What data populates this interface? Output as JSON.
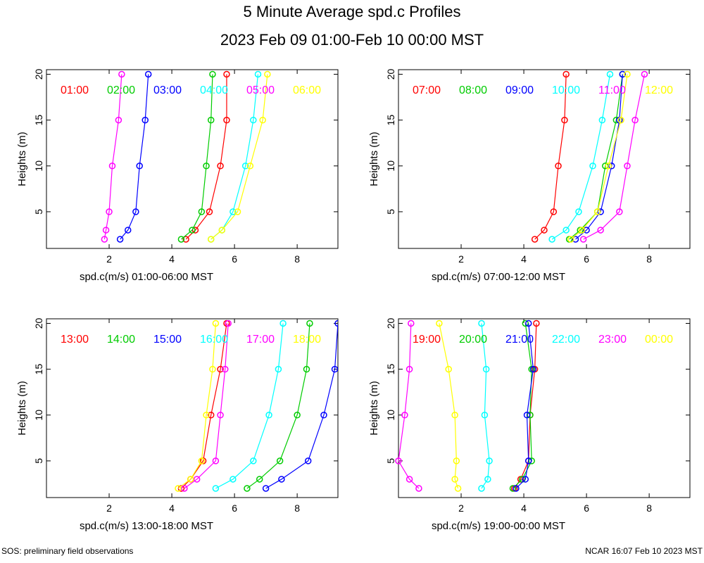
{
  "title": "5 Minute Average spd.c Profiles",
  "subtitle": "2023 Feb 09 01:00-Feb 10 00:00 MST",
  "footer_left": "SOS: preliminary field observations",
  "footer_right": "NCAR 16:07 Feb 10 2023 MST",
  "chart_data": [
    {
      "type": "line",
      "ylabel": "Heights (m)",
      "xlabel": "spd.c(m/s) 01:00-06:00 MST",
      "xlim": [
        0,
        9.3
      ],
      "ylim": [
        1,
        20.5
      ],
      "xticks": [
        2,
        4,
        6,
        8
      ],
      "yticks": [
        5,
        10,
        15,
        20
      ],
      "heights": [
        2,
        3,
        5,
        10,
        15,
        20
      ],
      "series": [
        {
          "name": "01:00",
          "color": "#ff0000",
          "x": [
            4.45,
            4.75,
            5.2,
            5.55,
            5.75,
            5.75
          ]
        },
        {
          "name": "02:00",
          "color": "#00cc00",
          "x": [
            4.3,
            4.65,
            4.95,
            5.1,
            5.25,
            5.3
          ]
        },
        {
          "name": "03:00",
          "color": "#0000ff",
          "x": [
            2.35,
            2.6,
            2.85,
            2.97,
            3.15,
            3.25
          ]
        },
        {
          "name": "04:00",
          "color": "#00ffff",
          "x": [
            5.25,
            5.6,
            5.95,
            6.35,
            6.6,
            6.75
          ]
        },
        {
          "name": "05:00",
          "color": "#ff00ff",
          "x": [
            1.85,
            1.9,
            2.0,
            2.1,
            2.3,
            2.4
          ]
        },
        {
          "name": "06:00",
          "color": "#ffff00",
          "x": [
            5.25,
            5.6,
            6.1,
            6.5,
            6.9,
            7.05
          ]
        }
      ]
    },
    {
      "type": "line",
      "ylabel": "Heights (m)",
      "xlabel": "spd.c(m/s) 07:00-12:00 MST",
      "xlim": [
        0,
        9.3
      ],
      "ylim": [
        1,
        20.5
      ],
      "xticks": [
        2,
        4,
        6,
        8
      ],
      "yticks": [
        5,
        10,
        15,
        20
      ],
      "heights": [
        2,
        3,
        5,
        10,
        15,
        20
      ],
      "series": [
        {
          "name": "07:00",
          "color": "#ff0000",
          "x": [
            4.35,
            4.65,
            4.95,
            5.1,
            5.3,
            5.35
          ]
        },
        {
          "name": "08:00",
          "color": "#00cc00",
          "x": [
            5.45,
            5.8,
            6.35,
            6.6,
            6.95,
            7.15
          ]
        },
        {
          "name": "09:00",
          "color": "#0000ff",
          "x": [
            5.65,
            6.0,
            6.45,
            6.8,
            7.05,
            7.15
          ]
        },
        {
          "name": "10:00",
          "color": "#00ffff",
          "x": [
            4.9,
            5.35,
            5.75,
            6.2,
            6.5,
            6.75
          ]
        },
        {
          "name": "11:00",
          "color": "#ff00ff",
          "x": [
            5.9,
            6.45,
            7.05,
            7.3,
            7.55,
            7.85
          ]
        },
        {
          "name": "12:00",
          "color": "#ffff00",
          "x": [
            5.5,
            5.85,
            6.35,
            6.7,
            7.1,
            7.3
          ]
        }
      ]
    },
    {
      "type": "line",
      "ylabel": "Heights (m)",
      "xlabel": "spd.c(m/s) 13:00-18:00 MST",
      "xlim": [
        0,
        9.3
      ],
      "ylim": [
        1,
        20.5
      ],
      "xticks": [
        2,
        4,
        6,
        8
      ],
      "yticks": [
        5,
        10,
        15,
        20
      ],
      "heights": [
        2,
        3,
        5,
        10,
        15,
        20
      ],
      "series": [
        {
          "name": "13:00",
          "color": "#ff0000",
          "x": [
            4.3,
            4.6,
            5.0,
            5.25,
            5.55,
            5.75
          ]
        },
        {
          "name": "14:00",
          "color": "#00cc00",
          "x": [
            6.4,
            6.8,
            7.45,
            8.0,
            8.3,
            8.4
          ]
        },
        {
          "name": "15:00",
          "color": "#0000ff",
          "x": [
            7.0,
            7.5,
            8.35,
            8.85,
            9.2,
            9.3
          ]
        },
        {
          "name": "16:00",
          "color": "#00ffff",
          "x": [
            5.4,
            5.95,
            6.6,
            7.1,
            7.4,
            7.55
          ]
        },
        {
          "name": "17:00",
          "color": "#ff00ff",
          "x": [
            4.4,
            4.8,
            5.4,
            5.55,
            5.7,
            5.8
          ]
        },
        {
          "name": "18:00",
          "color": "#ffff00",
          "x": [
            4.2,
            4.6,
            4.95,
            5.1,
            5.3,
            5.4
          ]
        }
      ]
    },
    {
      "type": "line",
      "ylabel": "Heights (m)",
      "xlabel": "spd.c(m/s) 19:00-00:00 MST",
      "xlim": [
        0,
        9.3
      ],
      "ylim": [
        1,
        20.5
      ],
      "xticks": [
        2,
        4,
        6,
        8
      ],
      "yticks": [
        5,
        10,
        15,
        20
      ],
      "heights": [
        2,
        3,
        5,
        10,
        15,
        20
      ],
      "series": [
        {
          "name": "19:00",
          "color": "#ff0000",
          "x": [
            3.7,
            3.9,
            4.15,
            4.2,
            4.35,
            4.4
          ]
        },
        {
          "name": "20:00",
          "color": "#00cc00",
          "x": [
            3.65,
            3.95,
            4.25,
            4.2,
            4.25,
            4.05
          ]
        },
        {
          "name": "21:00",
          "color": "#0000ff",
          "x": [
            3.75,
            4.05,
            4.15,
            4.1,
            4.3,
            4.15
          ]
        },
        {
          "name": "22:00",
          "color": "#00ffff",
          "x": [
            2.65,
            2.85,
            2.9,
            2.75,
            2.8,
            2.65
          ]
        },
        {
          "name": "23:00",
          "color": "#ff00ff",
          "x": [
            0.65,
            0.35,
            0.0,
            0.2,
            0.35,
            0.4
          ]
        },
        {
          "name": "00:00",
          "color": "#ffff00",
          "x": [
            1.9,
            1.8,
            1.85,
            1.8,
            1.6,
            1.3
          ]
        }
      ]
    }
  ]
}
